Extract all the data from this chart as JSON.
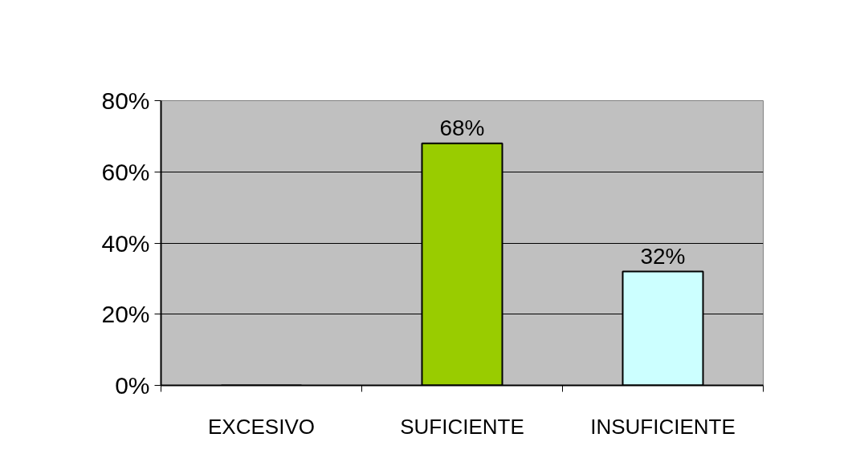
{
  "chart_data": {
    "type": "bar",
    "categories": [
      "EXCESIVO",
      "SUFICIENTE",
      "INSUFICIENTE"
    ],
    "values": [
      0,
      68,
      32
    ],
    "colors": [
      null,
      "#99cc00",
      "#ccffff"
    ],
    "value_labels": [
      null,
      "68%",
      "32%"
    ],
    "ylim": [
      0,
      80
    ],
    "yticks": [
      {
        "value": 0,
        "label": "0%"
      },
      {
        "value": 20,
        "label": "20%"
      },
      {
        "value": 40,
        "label": "40%"
      },
      {
        "value": 60,
        "label": "60%"
      },
      {
        "value": 80,
        "label": "80%"
      }
    ],
    "grid": "y"
  }
}
